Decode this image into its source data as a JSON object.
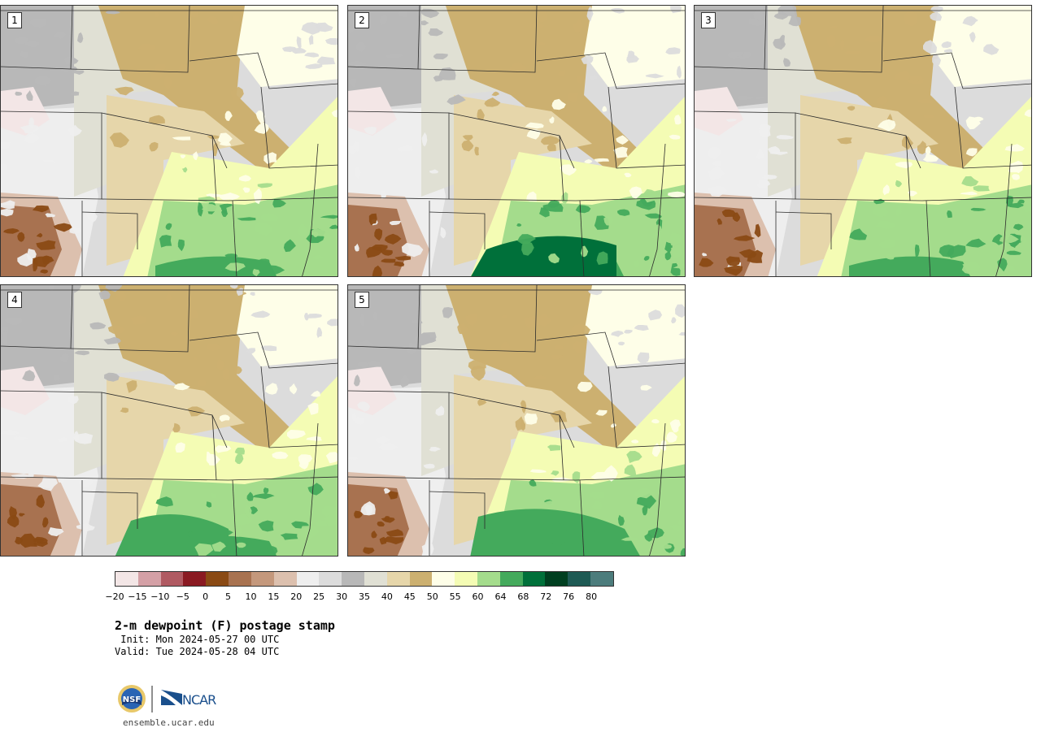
{
  "title": "2-m dewpoint (F) postage stamp",
  "init": " Init: Mon 2024-05-27 00 UTC",
  "valid": "Valid: Tue 2024-05-28 04 UTC",
  "website": "ensemble.ucar.edu",
  "logos": {
    "nsf": "NSF",
    "ncar": "NCAR"
  },
  "members": [
    "1",
    "2",
    "3",
    "4",
    "5"
  ],
  "colorbar": {
    "colors": [
      "#f3e6e6",
      "#d4a0a6",
      "#b05a62",
      "#8a1a22",
      "#8a4a14",
      "#a87250",
      "#c4987c",
      "#dcc0ae",
      "#eeeeee",
      "#dcdcdc",
      "#b8b8b8",
      "#e0e0d4",
      "#e6d6aa",
      "#ccb070",
      "#fefee8",
      "#f4fcb4",
      "#a4dc8c",
      "#44aa5c",
      "#00703a",
      "#003f20",
      "#1e5a54",
      "#4c7c7c"
    ],
    "ticks": [
      "−20",
      "−15",
      "−10",
      "−5",
      "0",
      "5",
      "10",
      "15",
      "20",
      "25",
      "30",
      "35",
      "40",
      "45",
      "50",
      "55",
      "60",
      "64",
      "68",
      "72",
      "76",
      "80"
    ]
  }
}
